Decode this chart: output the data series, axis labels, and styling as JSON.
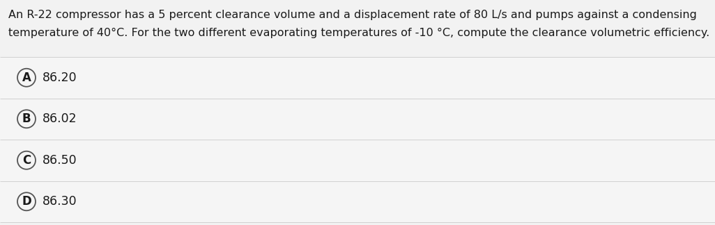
{
  "question_text_line1": "An R-22 compressor has a 5 percent clearance volume and a displacement rate of 80 L/s and pumps against a condensing",
  "question_text_line2": "temperature of 40°C. For the two different evaporating temperatures of -10 °C, compute the clearance volumetric efficiency.",
  "options": [
    {
      "label": "A",
      "value": "86.20"
    },
    {
      "label": "B",
      "value": "86.02"
    },
    {
      "label": "C",
      "value": "86.50"
    },
    {
      "label": "D",
      "value": "86.30"
    }
  ],
  "background_color": "#f2f2f2",
  "option_bg_color": "#f5f5f5",
  "option_border_color": "#d0d0d0",
  "text_color": "#1a1a1a",
  "circle_edge_color": "#555555",
  "font_size_question": 11.5,
  "font_size_option": 12.5,
  "fig_width": 10.26,
  "fig_height": 3.24,
  "dpi": 100
}
